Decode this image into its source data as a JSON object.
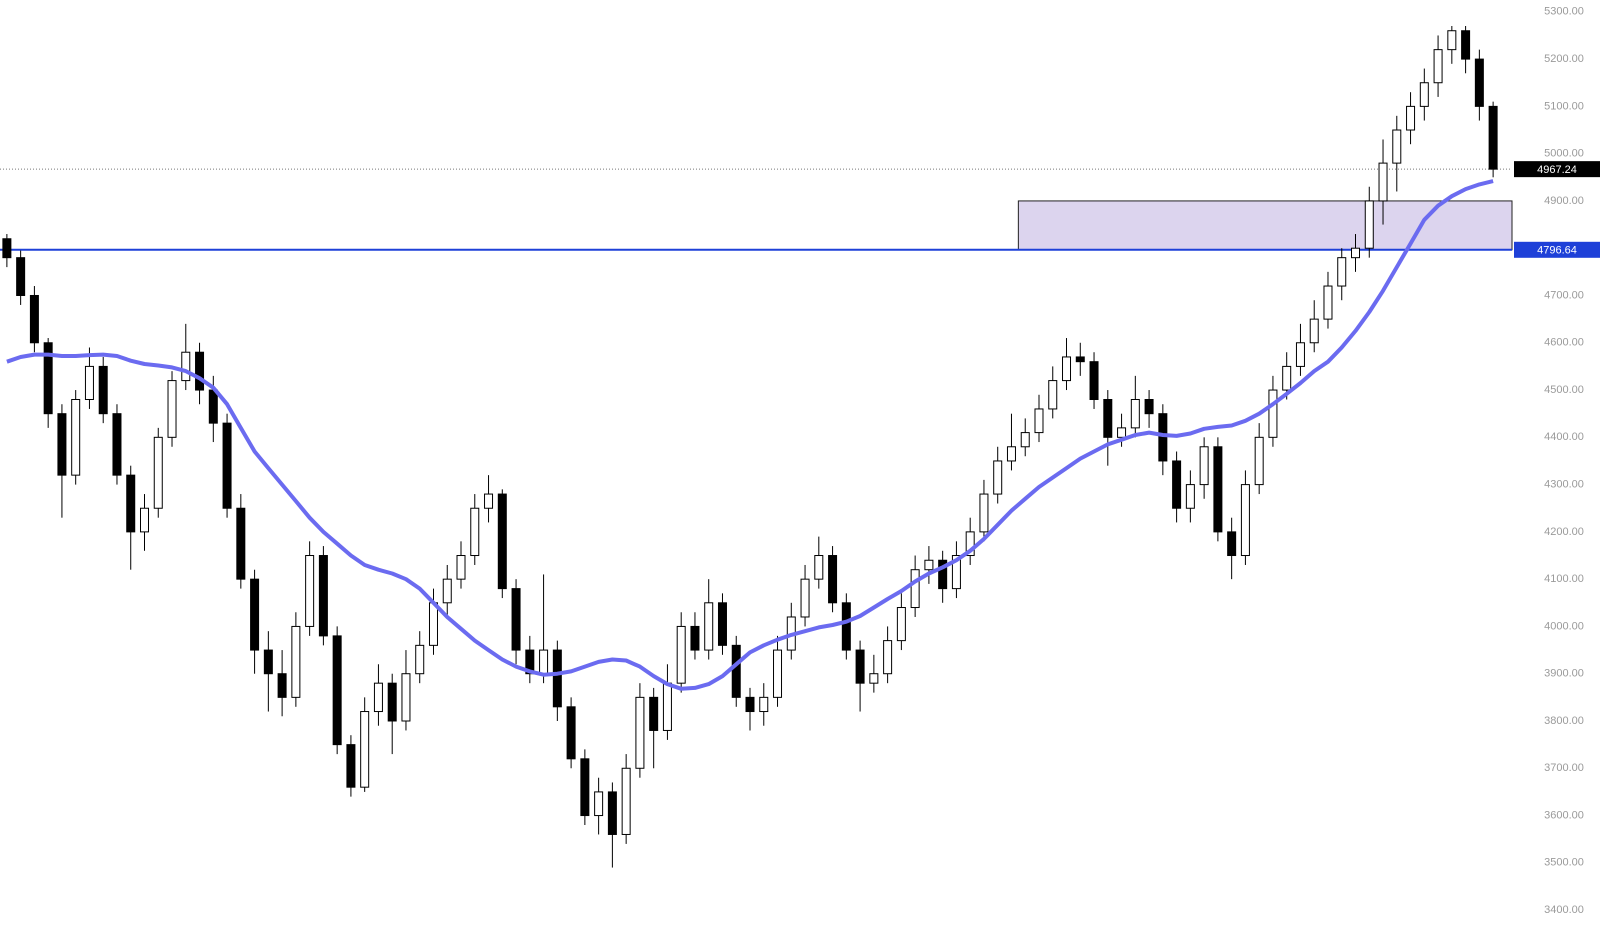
{
  "chart_data": {
    "type": "candlestick",
    "ylim": [
      3341,
      5325
    ],
    "yticks": [
      {
        "value": 3400,
        "label": "3400.00"
      },
      {
        "value": 3500,
        "label": "3500.00"
      },
      {
        "value": 3600,
        "label": "3600.00"
      },
      {
        "value": 3700,
        "label": "3700.00"
      },
      {
        "value": 3800,
        "label": "3800.00"
      },
      {
        "value": 3900,
        "label": "3900.00"
      },
      {
        "value": 4000,
        "label": "4000.00"
      },
      {
        "value": 4100,
        "label": "4100.00"
      },
      {
        "value": 4200,
        "label": "4200.00"
      },
      {
        "value": 4300,
        "label": "4300.00"
      },
      {
        "value": 4400,
        "label": "4400.00"
      },
      {
        "value": 4500,
        "label": "4500.00"
      },
      {
        "value": 4600,
        "label": "4600.00"
      },
      {
        "value": 4700,
        "label": "4700.00"
      },
      {
        "value": 4800,
        "label": "4800.00"
      },
      {
        "value": 4900,
        "label": "4900.00"
      },
      {
        "value": 5000,
        "label": "5000.00"
      },
      {
        "value": 5100,
        "label": "5100.00"
      },
      {
        "value": 5200,
        "label": "5200.00"
      },
      {
        "value": 5300,
        "label": "5300.00"
      }
    ],
    "up_color": "#ffffff",
    "down_color": "#000000",
    "candles": {
      "open": [
        4820,
        4780,
        4700,
        4600,
        4450,
        4320,
        4480,
        4550,
        4450,
        4320,
        4200,
        4250,
        4400,
        4520,
        4580,
        4500,
        4430,
        4250,
        4100,
        3950,
        3900,
        3850,
        4000,
        4150,
        3980,
        3750,
        3660,
        3820,
        3880,
        3800,
        3900,
        3960,
        4050,
        4100,
        4150,
        4250,
        4280,
        4080,
        3950,
        3900,
        3950,
        3830,
        3720,
        3600,
        3650,
        3560,
        3700,
        3850,
        3780,
        3880,
        4000,
        3950,
        4050,
        3960,
        3850,
        3820,
        3850,
        3950,
        4020,
        4100,
        4150,
        4050,
        3950,
        3880,
        3900,
        3970,
        4040,
        4120,
        4140,
        4080,
        4150,
        4200,
        4280,
        4350,
        4380,
        4410,
        4460,
        4520,
        4570,
        4560,
        4480,
        4400,
        4420,
        4480,
        4450,
        4350,
        4250,
        4300,
        4380,
        4200,
        4150,
        4300,
        4400,
        4500,
        4550,
        4600,
        4650,
        4720,
        4780,
        4800,
        4900,
        4980,
        5050,
        5100,
        5150,
        5220,
        5260,
        5200,
        5100
      ],
      "high": [
        4830,
        4795,
        4720,
        4610,
        4470,
        4500,
        4590,
        4570,
        4470,
        4340,
        4280,
        4420,
        4540,
        4640,
        4600,
        4530,
        4450,
        4280,
        4120,
        3990,
        3950,
        4030,
        4180,
        4170,
        4000,
        3770,
        3850,
        3920,
        3900,
        3950,
        3990,
        4080,
        4130,
        4180,
        4280,
        4320,
        4290,
        4100,
        3980,
        4110,
        3970,
        3850,
        3740,
        3680,
        3670,
        3730,
        3880,
        3870,
        3920,
        4030,
        4030,
        4100,
        4070,
        3980,
        3870,
        3880,
        3980,
        4050,
        4130,
        4190,
        4170,
        4070,
        3970,
        3940,
        4000,
        4070,
        4150,
        4170,
        4160,
        4180,
        4230,
        4310,
        4380,
        4450,
        4440,
        4490,
        4550,
        4610,
        4600,
        4580,
        4500,
        4450,
        4530,
        4500,
        4470,
        4370,
        4330,
        4400,
        4400,
        4230,
        4330,
        4430,
        4530,
        4580,
        4640,
        4690,
        4750,
        4800,
        4830,
        4930,
        5030,
        5080,
        5130,
        5180,
        5250,
        5270,
        5270,
        5220,
        5110
      ],
      "low": [
        4760,
        4680,
        4580,
        4420,
        4230,
        4300,
        4460,
        4430,
        4300,
        4120,
        4160,
        4230,
        4380,
        4500,
        4470,
        4390,
        4230,
        4080,
        3900,
        3820,
        3810,
        3830,
        3980,
        3960,
        3730,
        3640,
        3650,
        3790,
        3730,
        3780,
        3880,
        3940,
        4020,
        4080,
        4130,
        4220,
        4060,
        3920,
        3880,
        3880,
        3800,
        3700,
        3580,
        3560,
        3490,
        3540,
        3680,
        3700,
        3760,
        3860,
        3930,
        3930,
        3940,
        3830,
        3780,
        3790,
        3830,
        3930,
        4000,
        4080,
        4030,
        3930,
        3820,
        3860,
        3880,
        3950,
        4020,
        4090,
        4050,
        4060,
        4130,
        4180,
        4260,
        4330,
        4360,
        4390,
        4440,
        4500,
        4530,
        4460,
        4340,
        4380,
        4400,
        4420,
        4320,
        4220,
        4220,
        4270,
        4180,
        4100,
        4130,
        4280,
        4380,
        4480,
        4530,
        4580,
        4630,
        4690,
        4750,
        4780,
        4850,
        4920,
        5020,
        5070,
        5120,
        5190,
        5170,
        5070,
        4950
      ],
      "close": [
        4780,
        4700,
        4600,
        4450,
        4320,
        4480,
        4550,
        4450,
        4320,
        4200,
        4250,
        4400,
        4520,
        4580,
        4500,
        4430,
        4250,
        4100,
        3950,
        3900,
        3850,
        4000,
        4150,
        3980,
        3750,
        3660,
        3820,
        3880,
        3800,
        3900,
        3960,
        4050,
        4100,
        4150,
        4250,
        4280,
        4080,
        3950,
        3900,
        3950,
        3830,
        3720,
        3600,
        3650,
        3560,
        3700,
        3850,
        3780,
        3880,
        4000,
        3950,
        4050,
        3960,
        3850,
        3820,
        3850,
        3950,
        4020,
        4100,
        4150,
        4050,
        3950,
        3880,
        3900,
        3970,
        4040,
        4120,
        4140,
        4080,
        4150,
        4200,
        4280,
        4350,
        4380,
        4410,
        4460,
        4520,
        4570,
        4560,
        4480,
        4400,
        4420,
        4480,
        4450,
        4350,
        4250,
        4300,
        4380,
        4200,
        4150,
        4300,
        4400,
        4500,
        4550,
        4600,
        4650,
        4720,
        4780,
        4800,
        4900,
        4980,
        5050,
        5100,
        5150,
        5220,
        5260,
        5200,
        5100,
        4967.24
      ]
    },
    "ma": {
      "color": "#6b6bf0",
      "values": [
        4560,
        4570,
        4575,
        4575,
        4572,
        4572,
        4574,
        4575,
        4572,
        4562,
        4555,
        4552,
        4548,
        4540,
        4525,
        4505,
        4470,
        4420,
        4370,
        4335,
        4300,
        4265,
        4230,
        4200,
        4175,
        4150,
        4130,
        4120,
        4112,
        4100,
        4080,
        4050,
        4020,
        3995,
        3970,
        3950,
        3930,
        3915,
        3905,
        3898,
        3900,
        3905,
        3915,
        3925,
        3930,
        3928,
        3915,
        3895,
        3878,
        3868,
        3870,
        3878,
        3895,
        3920,
        3945,
        3960,
        3972,
        3982,
        3990,
        3998,
        4003,
        4010,
        4022,
        4040,
        4058,
        4075,
        4095,
        4112,
        4125,
        4140,
        4160,
        4185,
        4215,
        4245,
        4270,
        4295,
        4315,
        4335,
        4355,
        4370,
        4385,
        4395,
        4405,
        4410,
        4405,
        4403,
        4408,
        4418,
        4422,
        4425,
        4435,
        4450,
        4470,
        4492,
        4515,
        4540,
        4560,
        4590,
        4625,
        4665,
        4710,
        4760,
        4810,
        4860,
        4890,
        4910,
        4925,
        4935,
        4942
      ]
    },
    "zone": {
      "low": 4796.64,
      "high": 4900,
      "start_index": 74,
      "color": "#dcd4ee"
    },
    "level": {
      "value": 4796.64,
      "color": "#1e40d8"
    },
    "last_price": {
      "value": 4967.24,
      "color": "#000000"
    }
  }
}
